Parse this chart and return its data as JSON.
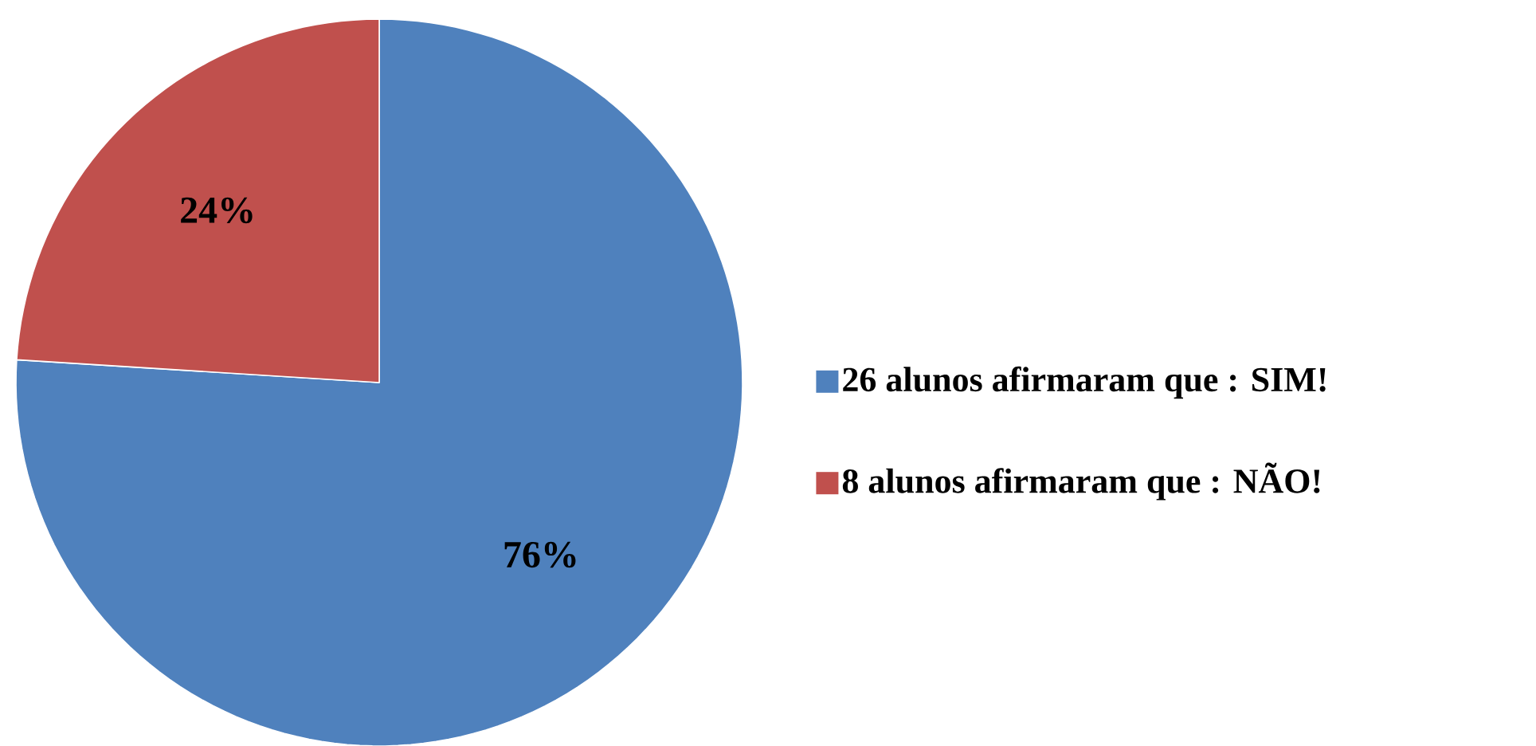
{
  "chart_data": {
    "type": "pie",
    "categories": [
      "26 alunos afirmaram que : SIM!",
      "8 alunos afirmaram que : NÃO!"
    ],
    "values": [
      76,
      24
    ],
    "colors": [
      "#4f81bd",
      "#c0504d"
    ],
    "value_labels": [
      "76%",
      "24%"
    ],
    "legend": "right"
  }
}
